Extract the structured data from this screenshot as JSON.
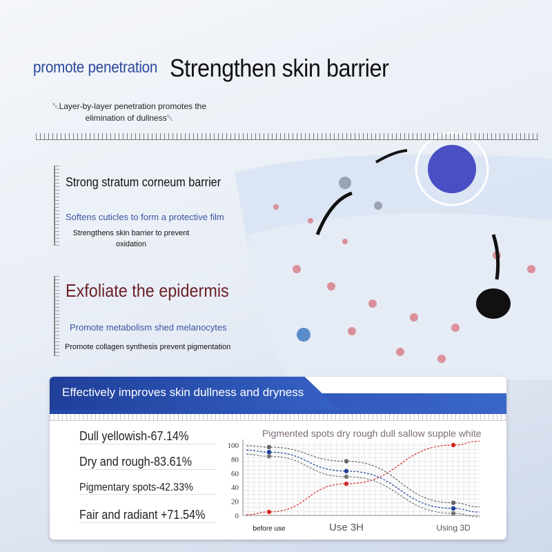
{
  "header": {
    "title_left": "promote penetration",
    "title_main": "Strengthen skin barrier",
    "subtitle": "␀Layer-by-layer penetration promotes the elimination of dullness␀"
  },
  "section1": {
    "heading": "Strong stratum corneum barrier",
    "line1": "Softens cuticles to form a protective film",
    "line2": "Strengthens skin barrier to prevent oxidation"
  },
  "section2": {
    "heading": "Exfoliate the epidermis",
    "line1": "Promote metabolism shed melanocytes",
    "line2": "Promote collagen synthesis prevent pigmentation"
  },
  "panel": {
    "title": "Effectively improves skin dullness and dryness",
    "stats": [
      "Dull yellowish-67.14%",
      "Dry and rough-83.61%",
      "Pigmentary spots-42.33%",
      "Fair and radiant +71.54%"
    ]
  },
  "colors": {
    "brand_blue": "#2347a8",
    "heading_red": "#6b1f24",
    "red_series": "#d42a2a",
    "blue_series": "#1f3f9a",
    "gray_series": "#666666"
  },
  "chart_data": {
    "type": "line",
    "title": "Pigmented spots dry rough dull sallow supple white",
    "categories": [
      "before use",
      "Use 3H",
      "Using 3D"
    ],
    "ylim": [
      0,
      100
    ],
    "yticks": [
      0,
      20,
      40,
      60,
      80,
      100
    ],
    "grid": true,
    "series": [
      {
        "color": "#d42a2a",
        "values": [
          5,
          45,
          100
        ]
      },
      {
        "color": "#666666",
        "values": [
          97,
          77,
          18
        ]
      },
      {
        "color": "#1f3f9a",
        "values": [
          90,
          63,
          10
        ]
      },
      {
        "color": "#777777",
        "values": [
          84,
          55,
          3
        ]
      }
    ]
  }
}
